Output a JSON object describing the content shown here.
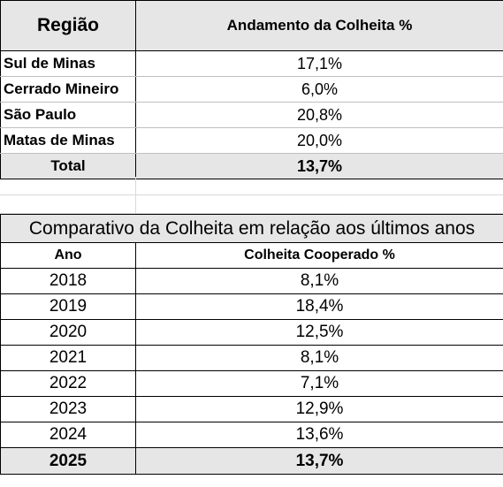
{
  "table1": {
    "headers": [
      "Região",
      "Andamento da Colheita %"
    ],
    "rows": [
      {
        "region": "Sul de Minas",
        "value": "17,1%"
      },
      {
        "region": "Cerrado Mineiro",
        "value": "6,0%"
      },
      {
        "region": "São Paulo",
        "value": "20,8%"
      },
      {
        "region": "Matas de Minas",
        "value": "20,0%"
      }
    ],
    "total": {
      "label": "Total",
      "value": "13,7%"
    }
  },
  "table2": {
    "title": "Comparativo da Colheita em relação aos últimos anos",
    "headers": [
      "Ano",
      "Colheita Cooperado %"
    ],
    "rows": [
      {
        "year": "2018",
        "value": "8,1%"
      },
      {
        "year": "2019",
        "value": "18,4%"
      },
      {
        "year": "2020",
        "value": "12,5%"
      },
      {
        "year": "2021",
        "value": "8,1%"
      },
      {
        "year": "2022",
        "value": "7,1%"
      },
      {
        "year": "2023",
        "value": "12,9%"
      },
      {
        "year": "2024",
        "value": "13,6%"
      }
    ],
    "last": {
      "year": "2025",
      "value": "13,7%"
    }
  },
  "colors": {
    "header_fill": "#e7e6e6",
    "border": "#000000",
    "gridline": "#d9d9d9"
  }
}
